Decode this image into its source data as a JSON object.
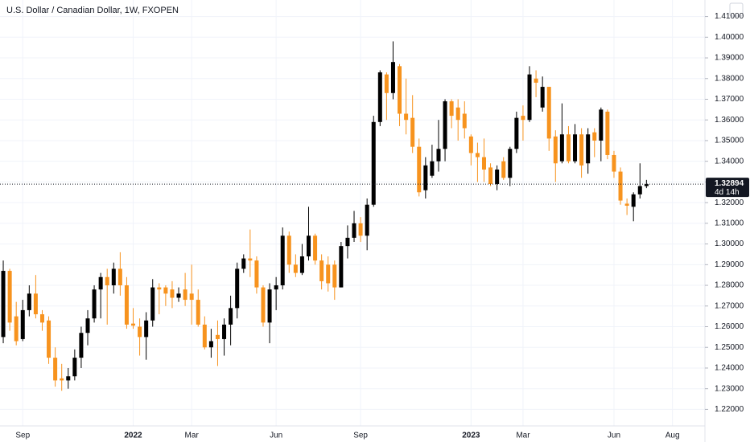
{
  "chart_data": {
    "type": "candlestick",
    "title": "U.S. Dollar / Canadian Dollar, 1W, FXOPEN",
    "up_color": "#000000",
    "down_color": "#f7931e",
    "open": [
      1.255,
      1.287,
      1.265,
      1.254,
      1.268,
      1.276,
      1.266,
      1.263,
      1.245,
      1.235,
      1.234,
      1.236,
      1.245,
      1.257,
      1.264,
      1.278,
      1.284,
      1.28,
      1.288,
      1.28,
      1.2615,
      1.26,
      1.255,
      1.263,
      1.279,
      1.279,
      1.278,
      1.274,
      1.278,
      1.276,
      1.273,
      1.261,
      1.25,
      1.256,
      1.254,
      1.261,
      1.269,
      1.288,
      1.293,
      1.292,
      1.279,
      1.262,
      1.278,
      1.28,
      1.304,
      1.29,
      1.286,
      1.294,
      1.304,
      1.292,
      1.29,
      1.29,
      1.279,
      1.299,
      1.303,
      1.31,
      1.304,
      1.319,
      1.359,
      1.382,
      1.373,
      1.386,
      1.363,
      1.361,
      1.347,
      1.326,
      1.333,
      1.34,
      1.346,
      1.369,
      1.366,
      1.363,
      1.352,
      1.344,
      1.342,
      1.337,
      1.329,
      1.34,
      1.332,
      1.346,
      1.362,
      1.36,
      1.38,
      1.366,
      1.376,
      1.352,
      1.34,
      1.353,
      1.34,
      1.353,
      1.339,
      1.354,
      1.35,
      1.364,
      1.343,
      1.335,
      1.3195,
      1.318,
      1.324,
      1.328
    ],
    "high": [
      1.292,
      1.288,
      1.272,
      1.273,
      1.28,
      1.285,
      1.268,
      1.265,
      1.25,
      1.242,
      1.24,
      1.249,
      1.26,
      1.268,
      1.28,
      1.286,
      1.288,
      1.291,
      1.296,
      1.284,
      1.269,
      1.264,
      1.267,
      1.283,
      1.281,
      1.28,
      1.282,
      1.279,
      1.286,
      1.29,
      1.278,
      1.265,
      1.259,
      1.263,
      1.264,
      1.275,
      1.291,
      1.295,
      1.307,
      1.294,
      1.28,
      1.281,
      1.284,
      1.308,
      1.306,
      1.295,
      1.3,
      1.318,
      1.305,
      1.295,
      1.294,
      1.292,
      1.301,
      1.309,
      1.316,
      1.313,
      1.322,
      1.362,
      1.384,
      1.383,
      1.398,
      1.387,
      1.38,
      1.372,
      1.351,
      1.342,
      1.348,
      1.36,
      1.37,
      1.37,
      1.37,
      1.369,
      1.353,
      1.349,
      1.351,
      1.339,
      1.338,
      1.342,
      1.347,
      1.364,
      1.367,
      1.386,
      1.384,
      1.381,
      1.376,
      1.355,
      1.368,
      1.357,
      1.358,
      1.356,
      1.356,
      1.356,
      1.366,
      1.365,
      1.345,
      1.337,
      1.322,
      1.325,
      1.339,
      1.331
    ],
    "low": [
      1.252,
      1.258,
      1.251,
      1.253,
      1.265,
      1.264,
      1.258,
      1.242,
      1.231,
      1.229,
      1.23,
      1.234,
      1.24,
      1.251,
      1.262,
      1.264,
      1.261,
      1.276,
      1.275,
      1.259,
      1.259,
      1.246,
      1.244,
      1.26,
      1.266,
      1.27,
      1.269,
      1.272,
      1.27,
      1.261,
      1.26,
      1.249,
      1.245,
      1.241,
      1.246,
      1.251,
      1.264,
      1.286,
      1.284,
      1.276,
      1.26,
      1.252,
      1.268,
      1.278,
      1.286,
      1.284,
      1.285,
      1.292,
      1.29,
      1.278,
      1.277,
      1.273,
      1.279,
      1.293,
      1.301,
      1.301,
      1.297,
      1.318,
      1.357,
      1.36,
      1.37,
      1.357,
      1.353,
      1.344,
      1.323,
      1.322,
      1.332,
      1.335,
      1.34,
      1.356,
      1.35,
      1.351,
      1.338,
      1.33,
      1.33,
      1.328,
      1.326,
      1.331,
      1.328,
      1.344,
      1.35,
      1.359,
      1.371,
      1.364,
      1.345,
      1.33,
      1.339,
      1.339,
      1.339,
      1.332,
      1.334,
      1.342,
      1.34,
      1.341,
      1.332,
      1.319,
      1.314,
      1.311,
      1.322,
      1.327
    ],
    "close": [
      1.287,
      1.262,
      1.253,
      1.268,
      1.276,
      1.266,
      1.262,
      1.245,
      1.234,
      1.234,
      1.236,
      1.245,
      1.257,
      1.264,
      1.278,
      1.284,
      1.28,
      1.288,
      1.28,
      1.261,
      1.2605,
      1.255,
      1.263,
      1.279,
      1.278,
      1.276,
      1.274,
      1.276,
      1.273,
      1.273,
      1.261,
      1.25,
      1.253,
      1.254,
      1.261,
      1.269,
      1.288,
      1.293,
      1.292,
      1.279,
      1.262,
      1.278,
      1.28,
      1.304,
      1.29,
      1.286,
      1.294,
      1.304,
      1.292,
      1.282,
      1.281,
      1.279,
      1.299,
      1.303,
      1.31,
      1.304,
      1.319,
      1.359,
      1.383,
      1.373,
      1.388,
      1.363,
      1.36,
      1.347,
      1.325,
      1.338,
      1.34,
      1.346,
      1.369,
      1.362,
      1.36,
      1.356,
      1.344,
      1.342,
      1.336,
      1.329,
      1.336,
      1.332,
      1.346,
      1.361,
      1.36,
      1.382,
      1.378,
      1.376,
      1.351,
      1.339,
      1.353,
      1.34,
      1.353,
      1.338,
      1.353,
      1.35,
      1.365,
      1.343,
      1.335,
      1.321,
      1.3185,
      1.324,
      1.328,
      1.32894
    ],
    "last_price": {
      "value": 1.32894,
      "label": "1.32894"
    },
    "countdown": "4d 14h",
    "xlim": [
      -0.5,
      108
    ],
    "xticks": [
      {
        "value": 3,
        "label": "Sep"
      },
      {
        "value": 20,
        "label": "2022"
      },
      {
        "value": 29,
        "label": "Mar"
      },
      {
        "value": 42,
        "label": "Jun"
      },
      {
        "value": 55,
        "label": "Sep"
      },
      {
        "value": 72,
        "label": "2023"
      },
      {
        "value": 80,
        "label": "Mar"
      },
      {
        "value": 94,
        "label": "Jun"
      },
      {
        "value": 103,
        "label": "Aug"
      }
    ],
    "ylim": [
      1.212,
      1.418
    ],
    "yticks": [
      {
        "value": 1.22,
        "label": "1.22000"
      },
      {
        "value": 1.23,
        "label": "1.23000"
      },
      {
        "value": 1.24,
        "label": "1.24000"
      },
      {
        "value": 1.25,
        "label": "1.25000"
      },
      {
        "value": 1.26,
        "label": "1.26000"
      },
      {
        "value": 1.27,
        "label": "1.27000"
      },
      {
        "value": 1.28,
        "label": "1.28000"
      },
      {
        "value": 1.29,
        "label": "1.29000"
      },
      {
        "value": 1.3,
        "label": "1.30000"
      },
      {
        "value": 1.31,
        "label": "1.31000"
      },
      {
        "value": 1.32,
        "label": "1.32000"
      },
      {
        "value": 1.33,
        "label": "1.33000"
      },
      {
        "value": 1.34,
        "label": "1.34000"
      },
      {
        "value": 1.35,
        "label": "1.35000"
      },
      {
        "value": 1.36,
        "label": "1.36000"
      },
      {
        "value": 1.37,
        "label": "1.37000"
      },
      {
        "value": 1.38,
        "label": "1.38000"
      },
      {
        "value": 1.39,
        "label": "1.39000"
      },
      {
        "value": 1.4,
        "label": "1.40000"
      },
      {
        "value": 1.41,
        "label": "1.41000"
      }
    ],
    "grid": true
  }
}
